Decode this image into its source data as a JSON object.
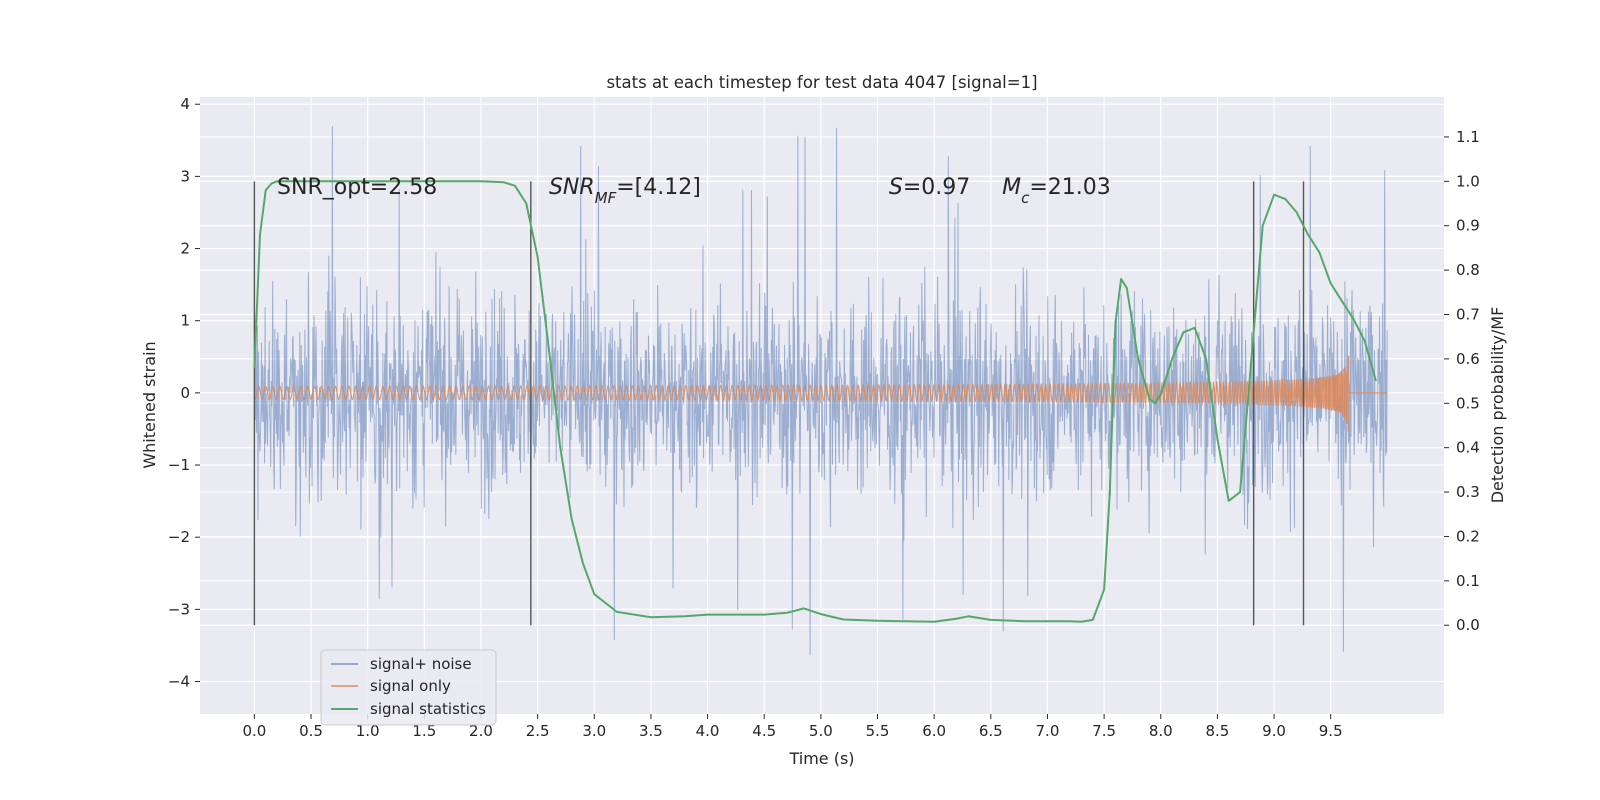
{
  "chart_data": {
    "type": "line",
    "title": "stats at each timestep for test data 4047 [signal=1]",
    "xlabel": "Time (s)",
    "ylabel": "Whitened strain",
    "y2label": "Detection probability/MF",
    "xlim": [
      -0.48,
      10.5
    ],
    "ylim": [
      -4.45,
      4.1
    ],
    "y2lim": [
      -0.2,
      1.19
    ],
    "xticks": [
      "0.0",
      "0.5",
      "1.0",
      "1.5",
      "2.0",
      "2.5",
      "3.0",
      "3.5",
      "4.0",
      "4.5",
      "5.0",
      "5.5",
      "6.0",
      "6.5",
      "7.0",
      "7.5",
      "8.0",
      "8.5",
      "9.0",
      "9.5"
    ],
    "yticks": [
      "−4",
      "−3",
      "−2",
      "−1",
      "0",
      "1",
      "2",
      "3",
      "4"
    ],
    "y2ticks": [
      "0.0",
      "0.1",
      "0.2",
      "0.3",
      "0.4",
      "0.5",
      "0.6",
      "0.7",
      "0.8",
      "0.9",
      "1.0",
      "1.1"
    ],
    "grid": true,
    "legend_position": "lower-left",
    "colors": {
      "background": "#eaeaf2",
      "grid": "#ffffff",
      "noise": "#4c72b0",
      "signal": "#dd8452",
      "stats": "#55a868",
      "vlines": "#555555"
    },
    "annotations": [
      {
        "id": "snr_opt",
        "text": "SNR_opt=2.58",
        "x": 0.2,
        "y2": 0.99
      },
      {
        "id": "snr_mf_pre",
        "text": "SNR",
        "sub": "MF",
        "post": "=[4.12]",
        "x": 2.6,
        "y2": 0.99
      },
      {
        "id": "s_stat",
        "text": "S",
        "post": "=0.97",
        "x": 5.6,
        "y2": 0.99
      },
      {
        "id": "mc",
        "text": "M",
        "sub": "c",
        "post": "=21.03",
        "x": 6.6,
        "y2": 0.99
      }
    ],
    "vertical_lines": [
      {
        "x": 0.0,
        "y2": [
          0.0,
          1.0
        ]
      },
      {
        "x": 2.44,
        "y2": [
          0.0,
          1.0
        ]
      },
      {
        "x": 8.82,
        "y2": [
          0.0,
          1.0
        ]
      },
      {
        "x": 9.26,
        "y2": [
          0.0,
          1.0
        ]
      }
    ],
    "series": [
      {
        "name": "signal+ noise",
        "axis": "left",
        "style": "noise",
        "x_range": [
          0.0,
          10.0
        ],
        "band_p5": [
          -2.0,
          2.0
        ],
        "peak_max": 3.75,
        "peak_min": -3.95
      },
      {
        "name": "signal only",
        "axis": "left",
        "style": "chirp",
        "x_range": [
          0.0,
          9.66
        ],
        "peak_amplitude": 0.62
      },
      {
        "name": "signal statistics",
        "axis": "right",
        "style": "line",
        "x": [
          0.0,
          0.05,
          0.1,
          0.15,
          0.2,
          0.4,
          0.8,
          1.2,
          1.6,
          2.0,
          2.2,
          2.3,
          2.4,
          2.5,
          2.6,
          2.7,
          2.8,
          2.9,
          3.0,
          3.2,
          3.5,
          3.8,
          4.0,
          4.5,
          4.7,
          4.85,
          5.0,
          5.2,
          5.5,
          6.0,
          6.2,
          6.3,
          6.5,
          6.8,
          7.0,
          7.2,
          7.3,
          7.4,
          7.5,
          7.55,
          7.6,
          7.65,
          7.7,
          7.75,
          7.8,
          7.9,
          7.95,
          8.0,
          8.1,
          8.2,
          8.3,
          8.4,
          8.5,
          8.6,
          8.7,
          8.8,
          8.9,
          9.0,
          9.1,
          9.2,
          9.3,
          9.4,
          9.5,
          9.6,
          9.7,
          9.8,
          9.9
        ],
        "y": [
          0.58,
          0.88,
          0.98,
          0.995,
          1.0,
          1.0,
          1.0,
          1.0,
          1.0,
          1.0,
          0.998,
          0.99,
          0.95,
          0.83,
          0.62,
          0.4,
          0.24,
          0.14,
          0.07,
          0.03,
          0.018,
          0.02,
          0.024,
          0.024,
          0.028,
          0.038,
          0.025,
          0.013,
          0.01,
          0.008,
          0.015,
          0.02,
          0.012,
          0.009,
          0.009,
          0.009,
          0.008,
          0.012,
          0.08,
          0.3,
          0.68,
          0.78,
          0.76,
          0.68,
          0.6,
          0.51,
          0.5,
          0.52,
          0.6,
          0.66,
          0.67,
          0.6,
          0.42,
          0.28,
          0.3,
          0.6,
          0.9,
          0.97,
          0.96,
          0.93,
          0.88,
          0.84,
          0.77,
          0.73,
          0.69,
          0.64,
          0.55
        ]
      }
    ]
  }
}
